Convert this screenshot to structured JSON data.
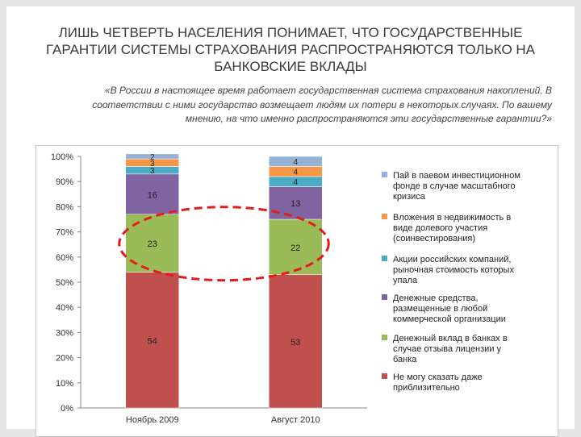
{
  "title": "ЛИШЬ ЧЕТВЕРТЬ НАСЕЛЕНИЯ ПОНИМАЕТ, ЧТО ГОСУДАРСТВЕННЫЕ ГАРАНТИИ СИСТЕМЫ СТРАХОВАНИЯ РАСПРОСТРАНЯЮТСЯ ТОЛЬКО НА БАНКОВСКИЕ ВКЛАДЫ",
  "subtitle": "«В России в настоящее время работает государственная система страхования накоплений. В соответствии с ними государство возмещает людям их потери в некоторых случаях. По вашему мнению, на что именно распространяются эти государственные гарантии?»",
  "chart_data": {
    "type": "bar",
    "stacked": true,
    "categories": [
      "Ноябрь 2009",
      "Август 2010"
    ],
    "series": [
      {
        "name": "Не могу сказать даже приблизительно",
        "color": "#c0504d",
        "values": [
          54,
          53
        ]
      },
      {
        "name": "Денежный вклад в банках в случае отзыва лицензии у банка",
        "color": "#9bbb59",
        "values": [
          23,
          22
        ]
      },
      {
        "name": "Денежные средства, размещенные в любой коммерческой организации",
        "color": "#8064a2",
        "values": [
          16,
          13
        ]
      },
      {
        "name": "Акции российских компаний, рыночная стоимость которых упала",
        "color": "#4bacc6",
        "values": [
          3,
          4
        ]
      },
      {
        "name": "Вложения в недвижимость в виде долевого участия (соинвестирования)",
        "color": "#f79646",
        "values": [
          3,
          4
        ]
      },
      {
        "name": "Пай в паевом инвестиционном фонде в случае масштабного кризиса",
        "color": "#95b3d7",
        "values": [
          2,
          4
        ]
      }
    ],
    "yticks": [
      "0%",
      "10%",
      "20%",
      "30%",
      "40%",
      "50%",
      "60%",
      "70%",
      "80%",
      "90%",
      "100%"
    ],
    "ylim": [
      0,
      100
    ],
    "legend_position": "right",
    "highlight": "ellipse around the second segment of both bars",
    "highlight_color": "#e31b1b"
  }
}
